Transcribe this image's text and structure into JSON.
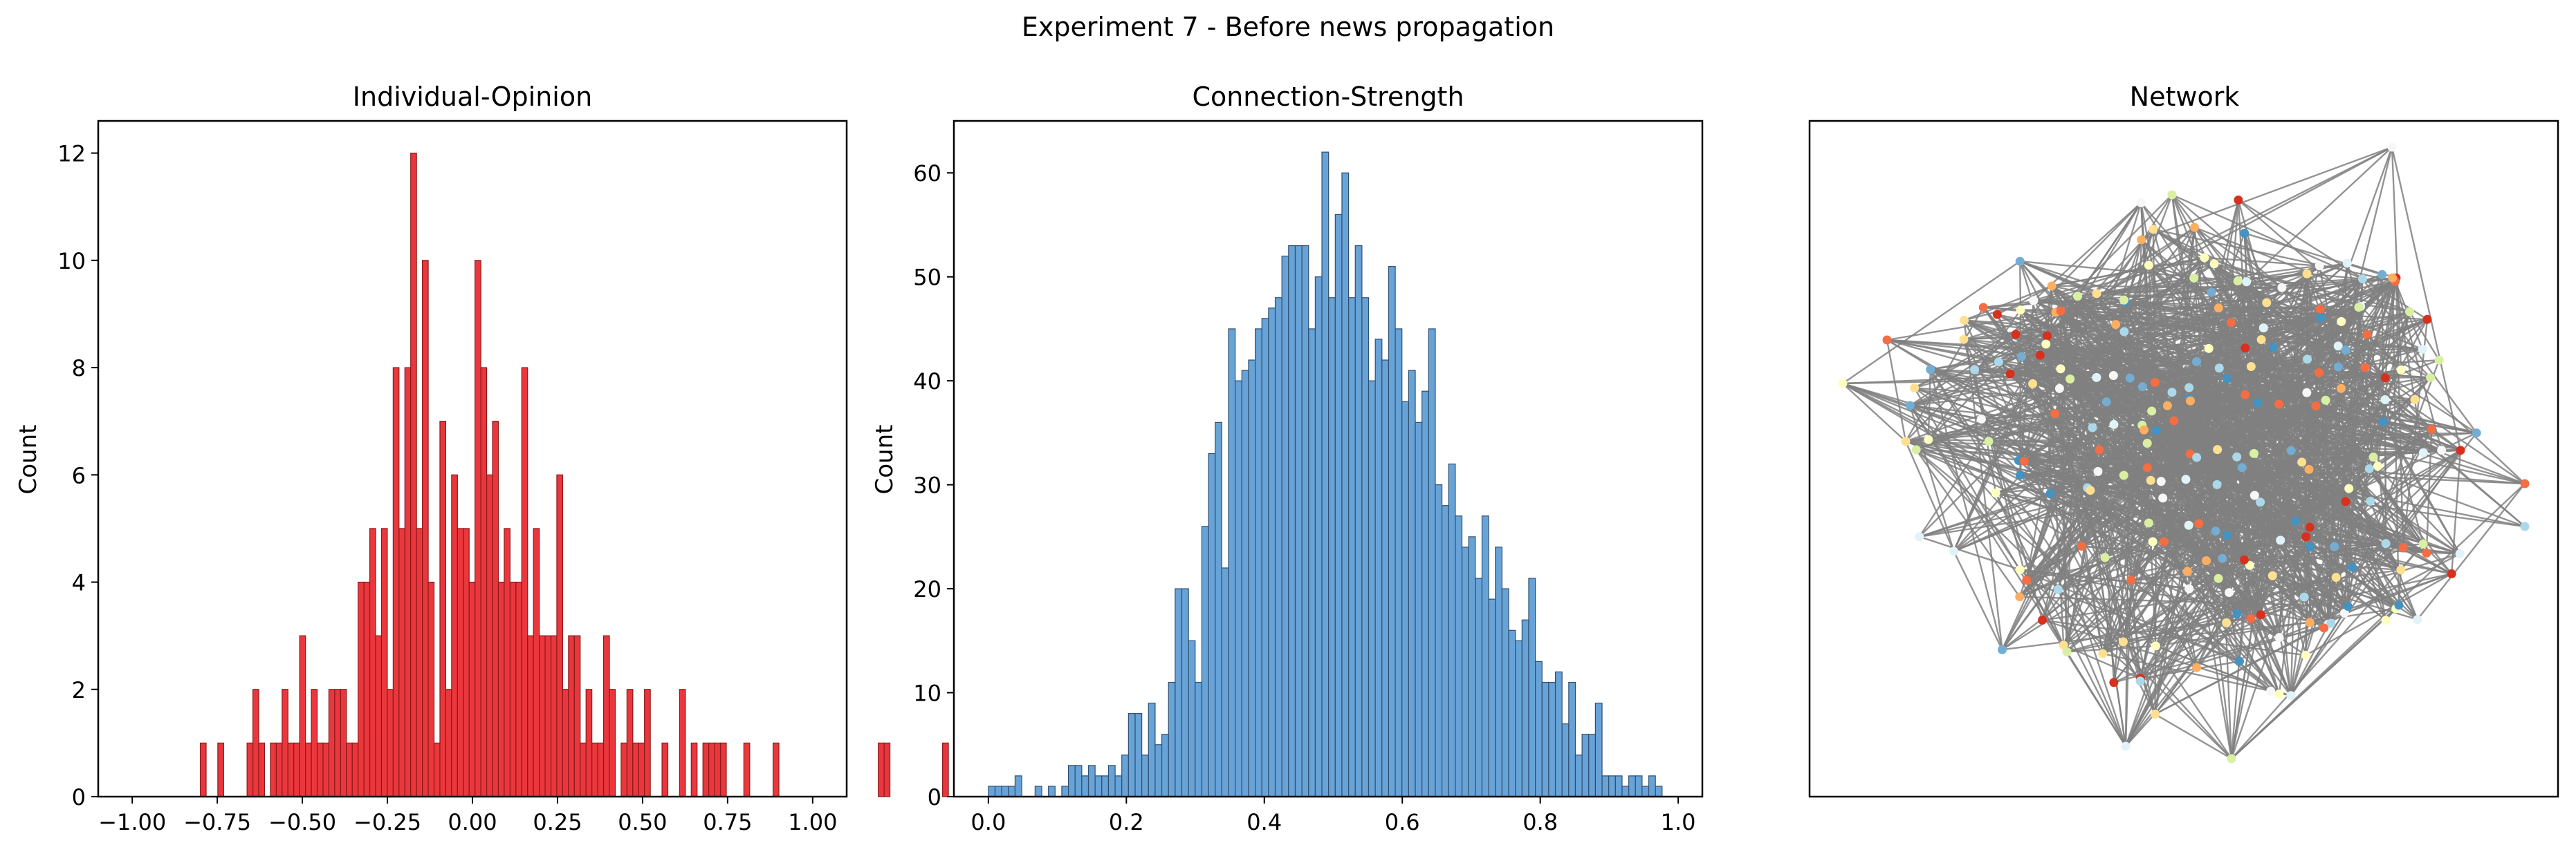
{
  "suptitle": "Experiment 7 - Before news propagation",
  "colors": {
    "opinion_bar": "#e8262c",
    "opinion_edge": "#8b1a1a",
    "strength_bar": "#5b9bd5",
    "strength_edge": "#2f4f6f",
    "edge": "#808080"
  },
  "chart_data": [
    {
      "type": "bar",
      "title": "Individual-Opinion",
      "xlabel": "",
      "ylabel": "Count",
      "xlim": [
        -1.1,
        1.1
      ],
      "ylim": [
        0,
        12.6
      ],
      "xticks": [
        -1.0,
        -0.75,
        -0.5,
        -0.25,
        0.0,
        0.25,
        0.5,
        0.75,
        1.0
      ],
      "xtick_labels": [
        "−1.00",
        "−0.75",
        "−0.50",
        "−0.25",
        "0.00",
        "0.25",
        "0.50",
        "0.75",
        "1.00"
      ],
      "yticks": [
        0,
        2,
        4,
        6,
        8,
        10,
        12
      ],
      "ytick_labels": [
        "0",
        "2",
        "4",
        "6",
        "8",
        "10",
        "12"
      ],
      "grid": false,
      "bin_start": -0.8,
      "bin_width": 0.01718,
      "values": [
        1,
        0,
        0,
        1,
        0,
        0,
        0,
        0,
        1,
        2,
        1,
        0,
        1,
        1,
        2,
        1,
        1,
        3,
        1,
        2,
        1,
        1,
        2,
        2,
        2,
        1,
        1,
        4,
        4,
        5,
        3,
        5,
        2,
        8,
        5,
        8,
        12,
        5,
        10,
        4,
        1,
        7,
        2,
        6,
        5,
        5,
        4,
        10,
        8,
        6,
        7,
        4,
        5,
        4,
        4,
        8,
        3,
        5,
        3,
        3,
        3,
        6,
        2,
        3,
        3,
        1,
        2,
        1,
        1,
        3,
        2,
        0,
        1,
        2,
        1,
        1,
        2,
        0,
        0,
        1,
        0,
        0,
        2,
        0,
        1,
        0,
        1,
        1,
        1,
        1,
        0,
        0,
        0,
        1,
        0,
        0,
        0,
        0,
        1,
        0,
        0,
        0,
        0,
        0,
        0,
        0,
        0,
        0,
        0,
        0,
        0,
        0,
        0,
        0,
        0,
        0,
        1,
        1,
        0,
        0,
        0,
        0,
        0,
        0,
        0,
        0,
        0,
        1,
        0,
        0
      ]
    },
    {
      "type": "bar",
      "title": "Connection-Strength",
      "xlabel": "",
      "ylabel": "Count",
      "xlim": [
        -0.05,
        1.035
      ],
      "ylim": [
        0,
        65
      ],
      "xticks": [
        0.0,
        0.2,
        0.4,
        0.6,
        0.8,
        1.0
      ],
      "xtick_labels": [
        "0.0",
        "0.2",
        "0.4",
        "0.6",
        "0.8",
        "1.0"
      ],
      "yticks": [
        0,
        10,
        20,
        30,
        40,
        50,
        60
      ],
      "ytick_labels": [
        "0",
        "10",
        "20",
        "30",
        "40",
        "50",
        "60"
      ],
      "grid": false,
      "bin_start": 0.0,
      "bin_width": 0.00967,
      "values": [
        1,
        1,
        1,
        1,
        2,
        0,
        0,
        1,
        0,
        1,
        0,
        1,
        3,
        3,
        2,
        3,
        2,
        2,
        3,
        2,
        4,
        8,
        8,
        4,
        9,
        5,
        6,
        11,
        20,
        20,
        15,
        11,
        26,
        33,
        36,
        22,
        45,
        40,
        41,
        42,
        45,
        46,
        47,
        48,
        52,
        53,
        53,
        53,
        45,
        50,
        62,
        48,
        56,
        60,
        48,
        53,
        48,
        40,
        44,
        42,
        51,
        45,
        38,
        41,
        36,
        39,
        45,
        30,
        28,
        32,
        27,
        24,
        25,
        21,
        27,
        19,
        24,
        20,
        16,
        15,
        17,
        21,
        13,
        11,
        11,
        12,
        7,
        11,
        4,
        6,
        6,
        9,
        2,
        2,
        2,
        1,
        2,
        2,
        1,
        2,
        1
      ]
    }
  ],
  "network": {
    "title": "Network",
    "node_count": 230,
    "node_palette": [
      "#d7301f",
      "#f46d43",
      "#fdae61",
      "#fee090",
      "#ffffbf",
      "#e0f3f8",
      "#abd9e9",
      "#74add1",
      "#4393c3",
      "#f7f7f7",
      "#d9f0a3"
    ]
  }
}
